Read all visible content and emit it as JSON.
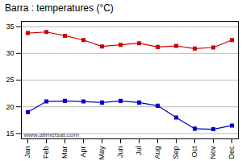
{
  "chart_data": {
    "type": "line",
    "title": "Barra : temperatures (°C)",
    "categories": [
      "Jan",
      "Feb",
      "Mar",
      "Apr",
      "May",
      "Jun",
      "Jul",
      "Aug",
      "Sep",
      "Oct",
      "Nov",
      "Dec"
    ],
    "series": [
      {
        "color": "#cc0000",
        "values": [
          33.8,
          34.0,
          33.3,
          32.5,
          31.3,
          31.6,
          31.9,
          31.2,
          31.4,
          30.9,
          31.1,
          32.5
        ]
      },
      {
        "color": "#0000cc",
        "values": [
          19.0,
          21.0,
          21.1,
          21.0,
          20.8,
          21.1,
          20.8,
          20.2,
          18.0,
          15.9,
          15.8,
          16.5
        ]
      }
    ],
    "marker": "square",
    "ylim": [
      14,
      36
    ],
    "yticks": [
      15,
      20,
      25,
      30,
      35
    ],
    "grid": "y",
    "annotations": [
      "www.allmetsat.com"
    ]
  }
}
